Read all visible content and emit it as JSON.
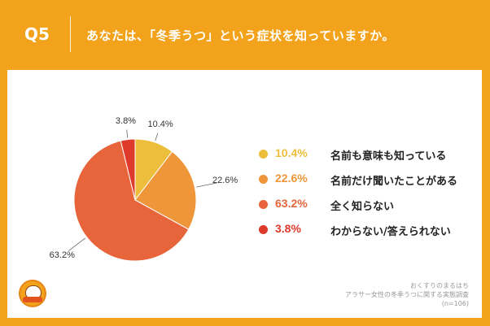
{
  "header": {
    "question_number": "Q5",
    "question_text": "あなたは、「冬季うつ」という症状を知っていますか。"
  },
  "chart_data": {
    "type": "pie",
    "title": "",
    "categories": [
      "名前も意味も知っている",
      "名前だけ聞いたことがある",
      "全く知らない",
      "わからない/答えられない"
    ],
    "values": [
      10.4,
      22.6,
      63.2,
      3.8
    ],
    "value_labels": [
      "10.4%",
      "22.6%",
      "63.2%",
      "3.8%"
    ],
    "colors": [
      "#EDBE3C",
      "#EF963A",
      "#E8643A",
      "#DD3A2B"
    ],
    "start_angle": "12 o'clock",
    "direction": "clockwise",
    "legend_position": "right"
  },
  "legend": {
    "items": [
      {
        "pct": "10.4%",
        "label": "名前も意味も知っている",
        "color": "#EDBE3C"
      },
      {
        "pct": "22.6%",
        "label": "名前だけ聞いたことがある",
        "color": "#EF963A"
      },
      {
        "pct": "63.2%",
        "label": "全く知らない",
        "color": "#E8643A"
      },
      {
        "pct": "3.8%",
        "label": "わからない/答えられない",
        "color": "#DD3A2B"
      }
    ]
  },
  "source": {
    "line1": "おくすりのまるはち",
    "line2": "アラサー女性の冬季うつに関する実態調査",
    "line3": "(n=106)"
  },
  "logo": {
    "icon": "character-mascot-logo"
  }
}
